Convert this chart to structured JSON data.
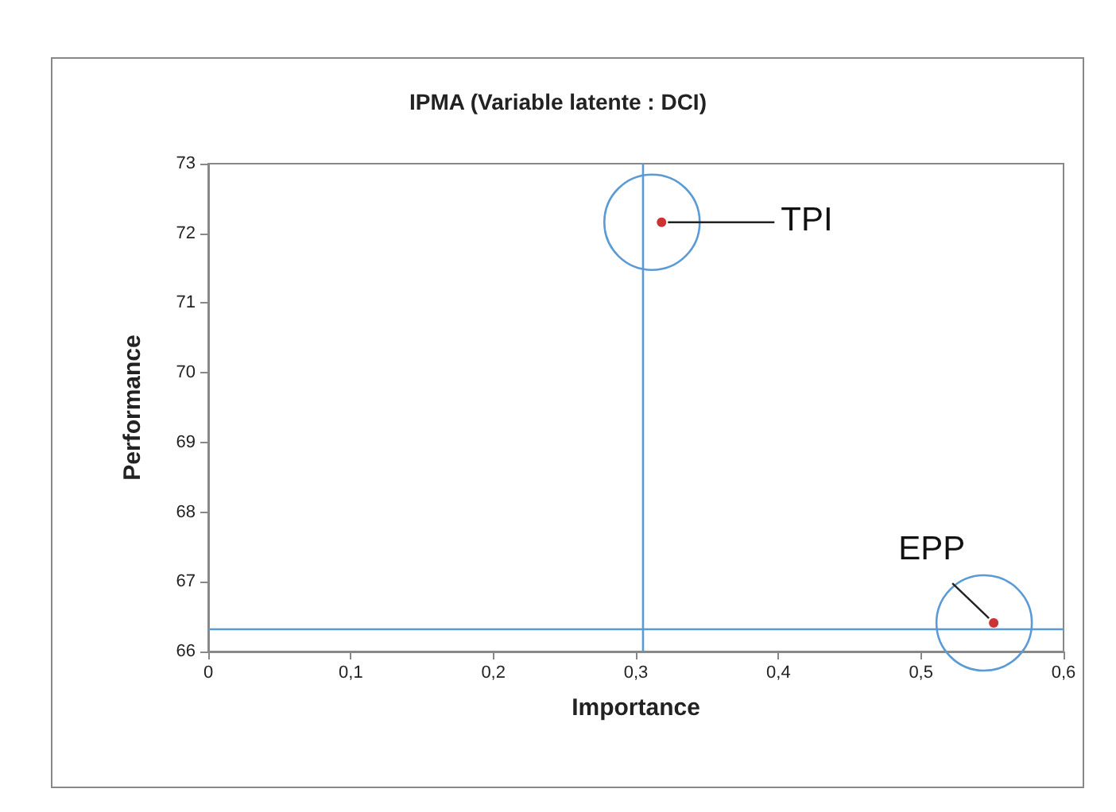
{
  "chart_data": {
    "type": "scatter",
    "title": "IPMA (Variable latente : DCI)",
    "xlabel": "Importance",
    "ylabel": "Performance",
    "x": [
      0.318,
      0.551
    ],
    "values": [
      72.16,
      66.41
    ],
    "color": "#c00000",
    "marker": "circle",
    "xlim": [
      0,
      0.6
    ],
    "xticks": [
      {
        "value": 0,
        "label": "0"
      },
      {
        "value": 0.1,
        "label": "0,1"
      },
      {
        "value": 0.2,
        "label": "0,2"
      },
      {
        "value": 0.3,
        "label": "0,3"
      },
      {
        "value": 0.4,
        "label": "0,4"
      },
      {
        "value": 0.5,
        "label": "0,5"
      },
      {
        "value": 0.6,
        "label": "0,6"
      }
    ],
    "ylim": [
      66,
      73
    ],
    "yticks": [
      66,
      67,
      68,
      69,
      70,
      71,
      72,
      73
    ],
    "ref_lines": [
      {
        "axis": "x",
        "value": 0.305,
        "color": "#5b9bd5"
      },
      {
        "axis": "y",
        "value": 66.32,
        "color": "#5b9bd5"
      }
    ],
    "annotations": [
      {
        "text": "TPI",
        "x": 0.318,
        "y": 72.16
      },
      {
        "text": "EPP",
        "x": 0.551,
        "y": 66.41
      }
    ],
    "grid": false
  }
}
